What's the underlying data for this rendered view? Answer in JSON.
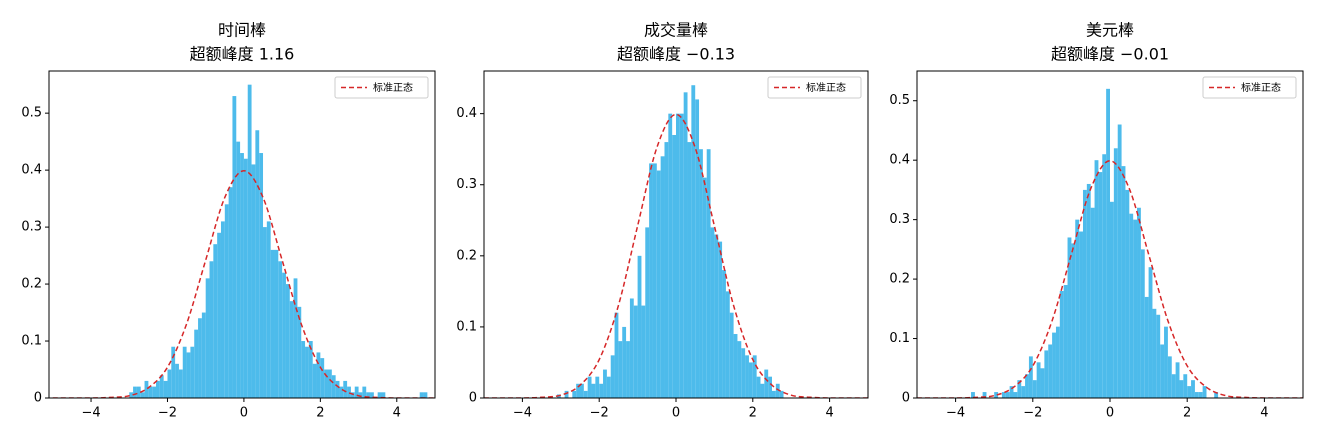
{
  "chart_data": [
    {
      "type": "histogram",
      "title": "时间棒",
      "subtitle": "超额峰度 1.16",
      "color": "#4dbbeb",
      "bins": [
        -3.0,
        -2.9,
        -2.8,
        -2.7,
        -2.6,
        -2.5,
        -2.4,
        -2.3,
        -2.2,
        -2.1,
        -2.0,
        -1.9,
        -1.8,
        -1.7,
        -1.6,
        -1.5,
        -1.4,
        -1.3,
        -1.2,
        -1.1,
        -1.0,
        -0.9,
        -0.8,
        -0.7,
        -0.6,
        -0.5,
        -0.4,
        -0.3,
        -0.2,
        -0.1,
        0.0,
        0.1,
        0.2,
        0.3,
        0.4,
        0.5,
        0.6,
        0.7,
        0.8,
        0.9,
        1.0,
        1.1,
        1.2,
        1.3,
        1.4,
        1.5,
        1.6,
        1.7,
        1.8,
        1.9,
        2.0,
        2.1,
        2.2,
        2.3,
        2.4,
        2.5,
        2.6,
        2.7,
        2.8,
        2.9,
        3.0,
        3.1,
        3.2,
        3.3,
        3.4,
        3.5,
        3.6,
        3.7,
        3.8,
        3.9,
        4.0,
        4.1,
        4.2,
        4.3,
        4.4,
        4.5,
        4.6,
        4.7,
        4.8
      ],
      "values": [
        0.01,
        0.02,
        0.02,
        0.01,
        0.03,
        0.02,
        0.02,
        0.03,
        0.04,
        0.03,
        0.05,
        0.09,
        0.06,
        0.05,
        0.09,
        0.08,
        0.09,
        0.12,
        0.14,
        0.15,
        0.21,
        0.24,
        0.27,
        0.29,
        0.31,
        0.34,
        0.37,
        0.53,
        0.45,
        0.43,
        0.42,
        0.55,
        0.41,
        0.47,
        0.43,
        0.3,
        0.31,
        0.26,
        0.26,
        0.24,
        0.22,
        0.2,
        0.17,
        0.21,
        0.16,
        0.1,
        0.09,
        0.1,
        0.06,
        0.08,
        0.07,
        0.05,
        0.05,
        0.04,
        0.03,
        0.02,
        0.03,
        0.02,
        0.01,
        0.02,
        0.01,
        0.02,
        0.01,
        0.01,
        0,
        0.01,
        0.01,
        0,
        0,
        0,
        0,
        0,
        0,
        0,
        0,
        0,
        0.01,
        0.01
      ],
      "curve": {
        "name": "标准正态",
        "color": "#d62728",
        "x": [
          -5,
          -4.5,
          -4,
          -3.5,
          -3,
          -2.5,
          -2,
          -1.5,
          -1,
          -0.5,
          0,
          0.5,
          1,
          1.5,
          2,
          2.5,
          3,
          3.5,
          4,
          4.5,
          5
        ],
        "values": [
          0,
          0,
          0,
          0.001,
          0.004,
          0.018,
          0.054,
          0.13,
          0.242,
          0.352,
          0.399,
          0.352,
          0.242,
          0.13,
          0.054,
          0.018,
          0.004,
          0.001,
          0,
          0,
          0
        ]
      },
      "xlim": [
        -5.1,
        5.0
      ],
      "ylim": [
        0,
        0.574
      ],
      "xticks": [
        {
          "value": -4,
          "label": "−4"
        },
        {
          "value": -2,
          "label": "−2"
        },
        0,
        2,
        4
      ],
      "yticks": [
        0.0,
        0.1,
        0.2,
        0.3,
        0.4,
        0.5
      ]
    },
    {
      "type": "histogram",
      "title": "成交量棒",
      "subtitle": "超额峰度 −0.13",
      "color": "#4dbbeb",
      "bins": [
        -3.1,
        -3.0,
        -2.9,
        -2.8,
        -2.7,
        -2.6,
        -2.5,
        -2.4,
        -2.3,
        -2.2,
        -2.1,
        -2.0,
        -1.9,
        -1.8,
        -1.7,
        -1.6,
        -1.5,
        -1.4,
        -1.3,
        -1.2,
        -1.1,
        -1.0,
        -0.9,
        -0.8,
        -0.7,
        -0.6,
        -0.5,
        -0.4,
        -0.3,
        -0.2,
        -0.1,
        0.0,
        0.1,
        0.2,
        0.3,
        0.4,
        0.5,
        0.6,
        0.7,
        0.8,
        0.9,
        1.0,
        1.1,
        1.2,
        1.3,
        1.4,
        1.5,
        1.6,
        1.7,
        1.8,
        1.9,
        2.0,
        2.1,
        2.2,
        2.3,
        2.4,
        2.5,
        2.6,
        2.7,
        2.8,
        2.9
      ],
      "values": [
        0.005,
        0,
        0.01,
        0,
        0.01,
        0.02,
        0.02,
        0.01,
        0.03,
        0.02,
        0.03,
        0.02,
        0.04,
        0.03,
        0.06,
        0.12,
        0.08,
        0.1,
        0.08,
        0.14,
        0.13,
        0.2,
        0.13,
        0.24,
        0.33,
        0.33,
        0.32,
        0.34,
        0.36,
        0.4,
        0.37,
        0.4,
        0.4,
        0.43,
        0.36,
        0.44,
        0.42,
        0.35,
        0.31,
        0.35,
        0.24,
        0.23,
        0.22,
        0.18,
        0.15,
        0.12,
        0.09,
        0.08,
        0.07,
        0.06,
        0.05,
        0.06,
        0.03,
        0.02,
        0.04,
        0.03,
        0.01,
        0.02,
        0.01,
        0
      ],
      "curve": {
        "name": "标准正态",
        "color": "#d62728",
        "x": [
          -5,
          -4.5,
          -4,
          -3.5,
          -3,
          -2.5,
          -2,
          -1.5,
          -1,
          -0.5,
          0,
          0.5,
          1,
          1.5,
          2,
          2.5,
          3,
          3.5,
          4,
          4.5,
          5
        ],
        "values": [
          0,
          0,
          0,
          0.001,
          0.004,
          0.018,
          0.054,
          0.13,
          0.242,
          0.352,
          0.399,
          0.352,
          0.242,
          0.13,
          0.054,
          0.018,
          0.004,
          0.001,
          0,
          0,
          0
        ]
      },
      "xlim": [
        -5.0,
        5.0
      ],
      "ylim": [
        0,
        0.46
      ],
      "xticks": [
        {
          "value": -4,
          "label": "−4"
        },
        {
          "value": -2,
          "label": "−2"
        },
        0,
        2,
        4
      ],
      "yticks": [
        0.0,
        0.1,
        0.2,
        0.3,
        0.4
      ]
    },
    {
      "type": "histogram",
      "title": "美元棒",
      "subtitle": "超额峰度 −0.01",
      "color": "#4dbbeb",
      "bins": [
        -3.6,
        -3.5,
        -3.4,
        -3.3,
        -3.2,
        -3.1,
        -3.0,
        -2.9,
        -2.8,
        -2.7,
        -2.6,
        -2.5,
        -2.4,
        -2.3,
        -2.2,
        -2.1,
        -2.0,
        -1.9,
        -1.8,
        -1.7,
        -1.6,
        -1.5,
        -1.4,
        -1.3,
        -1.2,
        -1.1,
        -1.0,
        -0.9,
        -0.8,
        -0.7,
        -0.6,
        -0.5,
        -0.4,
        -0.3,
        -0.2,
        -0.1,
        0.0,
        0.1,
        0.2,
        0.3,
        0.4,
        0.5,
        0.6,
        0.7,
        0.8,
        0.9,
        1.0,
        1.1,
        1.2,
        1.3,
        1.4,
        1.5,
        1.6,
        1.7,
        1.8,
        1.9,
        2.0,
        2.1,
        2.2,
        2.3,
        2.4,
        2.5,
        2.6,
        2.7,
        2.8
      ],
      "values": [
        0.01,
        0,
        0,
        0.01,
        0,
        0,
        0.01,
        0,
        0.01,
        0.01,
        0.02,
        0.01,
        0.03,
        0.02,
        0.04,
        0.07,
        0.03,
        0.06,
        0.05,
        0.08,
        0.09,
        0.11,
        0.12,
        0.18,
        0.19,
        0.27,
        0.26,
        0.3,
        0.28,
        0.35,
        0.36,
        0.32,
        0.4,
        0.38,
        0.41,
        0.52,
        0.33,
        0.42,
        0.46,
        0.39,
        0.35,
        0.31,
        0.3,
        0.32,
        0.25,
        0.17,
        0.22,
        0.15,
        0.14,
        0.09,
        0.12,
        0.07,
        0.04,
        0.06,
        0.03,
        0.04,
        0.02,
        0.03,
        0.01,
        0.01,
        0.02,
        0,
        0,
        0.01
      ],
      "curve": {
        "name": "标准正态",
        "color": "#d62728",
        "x": [
          -5,
          -4.5,
          -4,
          -3.5,
          -3,
          -2.5,
          -2,
          -1.5,
          -1,
          -0.5,
          0,
          0.5,
          1,
          1.5,
          2,
          2.5,
          3,
          3.5,
          4,
          4.5,
          5
        ],
        "values": [
          0,
          0,
          0,
          0.001,
          0.004,
          0.018,
          0.054,
          0.13,
          0.242,
          0.352,
          0.399,
          0.352,
          0.242,
          0.13,
          0.054,
          0.018,
          0.004,
          0.001,
          0,
          0,
          0
        ]
      },
      "xlim": [
        -5.0,
        5.0
      ],
      "ylim": [
        0,
        0.55
      ],
      "xticks": [
        {
          "value": -4,
          "label": "−4"
        },
        {
          "value": -2,
          "label": "−2"
        },
        0,
        2,
        4
      ],
      "yticks": [
        0.0,
        0.1,
        0.2,
        0.3,
        0.4,
        0.5
      ]
    }
  ]
}
